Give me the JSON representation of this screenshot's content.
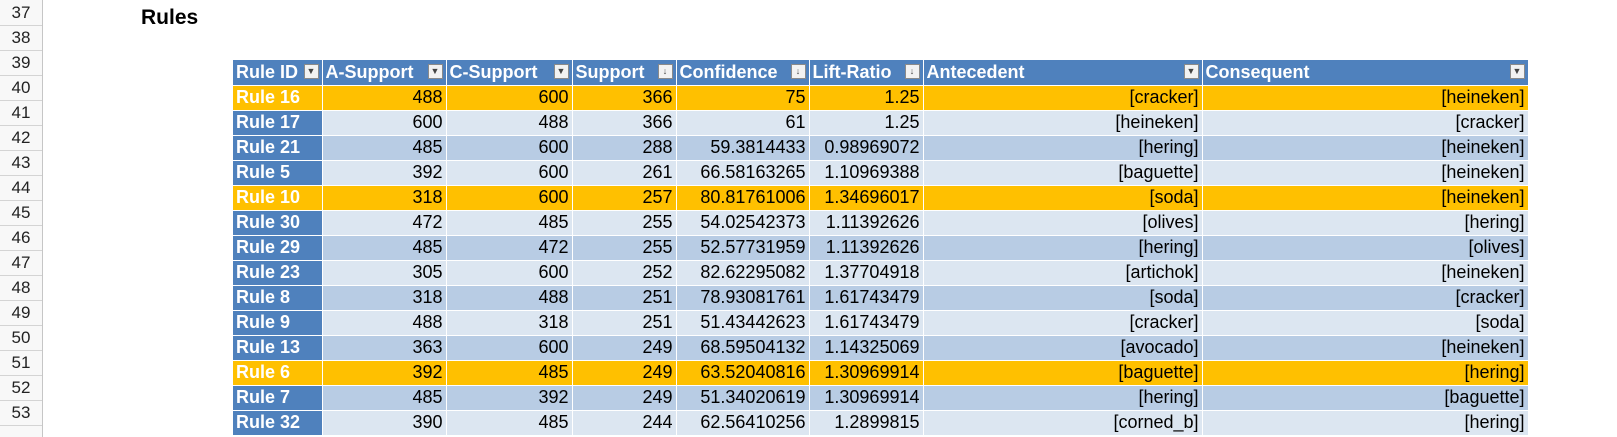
{
  "sheet": {
    "row_numbers": [
      "37",
      "38",
      "39",
      "40",
      "41",
      "42",
      "43",
      "44",
      "45",
      "46",
      "47",
      "48",
      "49",
      "50",
      "51",
      "52",
      "53"
    ],
    "title": "Rules"
  },
  "table": {
    "headers": [
      "Rule ID",
      "A-Support",
      "C-Support",
      "Support",
      "Confidence",
      "Lift-Ratio",
      "Antecedent",
      "Consequent"
    ],
    "sorted_columns": [
      "Support",
      "Confidence",
      "Lift-Ratio"
    ],
    "highlight_color": "#ffc000",
    "header_color": "#4f81bd",
    "rows": [
      {
        "highlight": true,
        "cells": [
          "Rule 16",
          "488",
          "600",
          "366",
          "75",
          "1.25",
          "[cracker]",
          "[heineken]"
        ]
      },
      {
        "highlight": false,
        "cells": [
          "Rule 17",
          "600",
          "488",
          "366",
          "61",
          "1.25",
          "[heineken]",
          "[cracker]"
        ]
      },
      {
        "highlight": false,
        "cells": [
          "Rule 21",
          "485",
          "600",
          "288",
          "59.3814433",
          "0.98969072",
          "[hering]",
          "[heineken]"
        ]
      },
      {
        "highlight": false,
        "cells": [
          "Rule 5",
          "392",
          "600",
          "261",
          "66.58163265",
          "1.10969388",
          "[baguette]",
          "[heineken]"
        ]
      },
      {
        "highlight": true,
        "cells": [
          "Rule 10",
          "318",
          "600",
          "257",
          "80.81761006",
          "1.34696017",
          "[soda]",
          "[heineken]"
        ]
      },
      {
        "highlight": false,
        "cells": [
          "Rule 30",
          "472",
          "485",
          "255",
          "54.02542373",
          "1.11392626",
          "[olives]",
          "[hering]"
        ]
      },
      {
        "highlight": false,
        "cells": [
          "Rule 29",
          "485",
          "472",
          "255",
          "52.57731959",
          "1.11392626",
          "[hering]",
          "[olives]"
        ]
      },
      {
        "highlight": false,
        "cells": [
          "Rule 23",
          "305",
          "600",
          "252",
          "82.62295082",
          "1.37704918",
          "[artichok]",
          "[heineken]"
        ]
      },
      {
        "highlight": false,
        "cells": [
          "Rule 8",
          "318",
          "488",
          "251",
          "78.93081761",
          "1.61743479",
          "[soda]",
          "[cracker]"
        ]
      },
      {
        "highlight": false,
        "cells": [
          "Rule 9",
          "488",
          "318",
          "251",
          "51.43442623",
          "1.61743479",
          "[cracker]",
          "[soda]"
        ]
      },
      {
        "highlight": false,
        "cells": [
          "Rule 13",
          "363",
          "600",
          "249",
          "68.59504132",
          "1.14325069",
          "[avocado]",
          "[heineken]"
        ]
      },
      {
        "highlight": true,
        "cells": [
          "Rule 6",
          "392",
          "485",
          "249",
          "63.52040816",
          "1.30969914",
          "[baguette]",
          "[hering]"
        ]
      },
      {
        "highlight": false,
        "cells": [
          "Rule 7",
          "485",
          "392",
          "249",
          "51.34020619",
          "1.30969914",
          "[hering]",
          "[baguette]"
        ]
      },
      {
        "highlight": false,
        "cells": [
          "Rule 32",
          "390",
          "485",
          "244",
          "62.56410256",
          "1.2899815",
          "[corned_b]",
          "[hering]"
        ]
      }
    ]
  }
}
